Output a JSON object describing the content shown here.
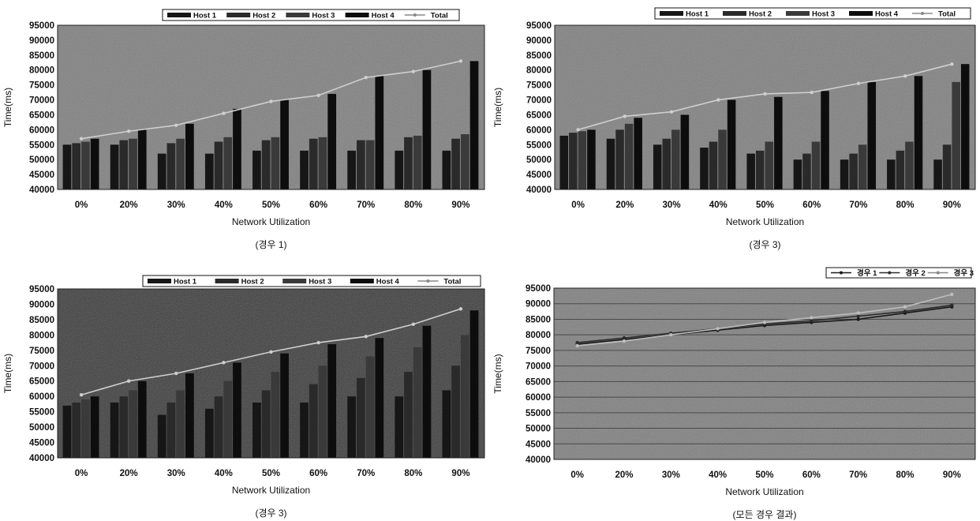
{
  "chart_data": [
    {
      "type": "bar",
      "caption": "(경우 1)",
      "xlabel": "Network Utilization",
      "ylabel": "Time(ms)",
      "ylim": [
        40000,
        95000
      ],
      "yticks": [
        40000,
        45000,
        50000,
        55000,
        60000,
        65000,
        70000,
        75000,
        80000,
        85000,
        90000,
        95000
      ],
      "categories": [
        "0%",
        "20%",
        "30%",
        "40%",
        "50%",
        "60%",
        "70%",
        "80%",
        "90%"
      ],
      "legend_position": "top",
      "series": [
        {
          "name": "Host 1",
          "kind": "bar",
          "color": "#161616",
          "values": [
            55000,
            55000,
            52000,
            52000,
            53000,
            53000,
            53000,
            53000,
            53000
          ]
        },
        {
          "name": "Host 2",
          "kind": "bar",
          "color": "#2a2a2a",
          "values": [
            55500,
            56500,
            55500,
            56000,
            56500,
            57000,
            56500,
            57500,
            57000
          ]
        },
        {
          "name": "Host 3",
          "kind": "bar",
          "color": "#3a3a3a",
          "values": [
            56000,
            57000,
            57000,
            57500,
            57500,
            57500,
            56500,
            58000,
            58500
          ]
        },
        {
          "name": "Host 4",
          "kind": "bar",
          "color": "#0d0d0d",
          "values": [
            57000,
            60000,
            62000,
            67000,
            70000,
            72000,
            78000,
            80000,
            83000
          ]
        },
        {
          "name": "Total",
          "kind": "line",
          "color": "#cfcfcf",
          "values": [
            57000,
            59500,
            61500,
            65500,
            69500,
            71500,
            77500,
            79500,
            83000
          ]
        }
      ]
    },
    {
      "type": "bar",
      "caption": "(경우 3)",
      "xlabel": "Network Utilization",
      "ylabel": "Time(ms)",
      "ylim": [
        40000,
        95000
      ],
      "yticks": [
        40000,
        45000,
        50000,
        55000,
        60000,
        65000,
        70000,
        75000,
        80000,
        85000,
        90000,
        95000
      ],
      "categories": [
        "0%",
        "20%",
        "30%",
        "40%",
        "50%",
        "60%",
        "70%",
        "80%",
        "90%"
      ],
      "legend_position": "top",
      "series": [
        {
          "name": "Host 1",
          "kind": "bar",
          "color": "#161616",
          "values": [
            58000,
            57000,
            55000,
            54000,
            52000,
            50000,
            50000,
            50000,
            50000
          ]
        },
        {
          "name": "Host 2",
          "kind": "bar",
          "color": "#2a2a2a",
          "values": [
            59000,
            60000,
            57000,
            56000,
            53000,
            52000,
            52000,
            53000,
            55000
          ]
        },
        {
          "name": "Host 3",
          "kind": "bar",
          "color": "#3a3a3a",
          "values": [
            59500,
            62000,
            60000,
            60000,
            56000,
            56000,
            55000,
            56000,
            76000
          ]
        },
        {
          "name": "Host 4",
          "kind": "bar",
          "color": "#0d0d0d",
          "values": [
            60000,
            64000,
            65000,
            70000,
            71000,
            73000,
            76000,
            78000,
            82000
          ]
        },
        {
          "name": "Total",
          "kind": "line",
          "color": "#cfcfcf",
          "values": [
            60000,
            64500,
            66000,
            70000,
            72000,
            72500,
            75500,
            78000,
            82000
          ]
        }
      ]
    },
    {
      "type": "bar",
      "caption": "(경우 3)",
      "xlabel": "Network Utilization",
      "ylabel": "Time(ms)",
      "ylim": [
        40000,
        95000
      ],
      "yticks": [
        40000,
        45000,
        50000,
        55000,
        60000,
        65000,
        70000,
        75000,
        80000,
        85000,
        90000,
        95000
      ],
      "categories": [
        "0%",
        "20%",
        "30%",
        "40%",
        "50%",
        "60%",
        "70%",
        "80%",
        "90%"
      ],
      "legend_position": "top",
      "series": [
        {
          "name": "Host 1",
          "kind": "bar",
          "color": "#161616",
          "values": [
            57000,
            58000,
            54000,
            56000,
            58000,
            58000,
            60000,
            60000,
            62000
          ]
        },
        {
          "name": "Host 2",
          "kind": "bar",
          "color": "#2a2a2a",
          "values": [
            58000,
            60000,
            58000,
            60000,
            62000,
            64000,
            66000,
            68000,
            70000
          ]
        },
        {
          "name": "Host 3",
          "kind": "bar",
          "color": "#3a3a3a",
          "values": [
            59000,
            62000,
            62000,
            65000,
            68000,
            70000,
            73000,
            76000,
            80000
          ]
        },
        {
          "name": "Host 4",
          "kind": "bar",
          "color": "#0d0d0d",
          "values": [
            60000,
            65000,
            67500,
            71000,
            74000,
            77000,
            79000,
            83000,
            88000
          ]
        },
        {
          "name": "Total",
          "kind": "line",
          "color": "#cfcfcf",
          "values": [
            60500,
            65000,
            67500,
            71000,
            74500,
            77500,
            79500,
            83500,
            88500
          ]
        }
      ]
    },
    {
      "type": "line",
      "caption": "(모든 경우 결과)",
      "xlabel": "Network Utilization",
      "ylabel": "Time(ms)",
      "ylim": [
        40000,
        95000
      ],
      "yticks": [
        40000,
        45000,
        50000,
        55000,
        60000,
        65000,
        70000,
        75000,
        80000,
        85000,
        90000,
        95000
      ],
      "categories": [
        "0%",
        "20%",
        "30%",
        "40%",
        "50%",
        "60%",
        "70%",
        "80%",
        "90%"
      ],
      "legend_position": "top-right",
      "grid": true,
      "series": [
        {
          "name": "경우 1",
          "kind": "line",
          "color": "#1a1a1a",
          "values": [
            77000,
            78500,
            80000,
            81500,
            83000,
            84000,
            85000,
            87000,
            89000
          ]
        },
        {
          "name": "경우 2",
          "kind": "line",
          "color": "#2b2b2b",
          "values": [
            77500,
            79000,
            80500,
            82000,
            83500,
            84500,
            86000,
            87500,
            89500
          ]
        },
        {
          "name": "경우 3",
          "kind": "line",
          "color": "#bdbdbd",
          "values": [
            76500,
            78000,
            80000,
            82000,
            84000,
            85500,
            87000,
            89000,
            93000
          ]
        }
      ]
    }
  ]
}
